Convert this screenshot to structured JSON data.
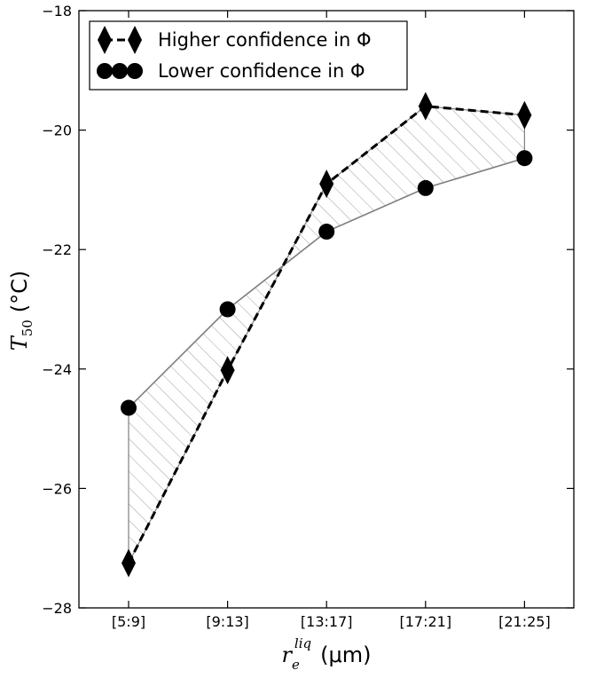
{
  "chart_data": {
    "type": "line",
    "categories": [
      "[5:9]",
      "[9:13]",
      "[13:17]",
      "[17:21]",
      "[21:25]"
    ],
    "series": [
      {
        "name": "Higher confidence in Φ",
        "marker": "diamond",
        "line": "dashed",
        "color": "#000000",
        "values": [
          -27.25,
          -24.02,
          -20.9,
          -19.6,
          -19.75
        ]
      },
      {
        "name": "Lower confidence in Φ",
        "marker": "circle",
        "line": "solid",
        "color": "#000000",
        "values": [
          -24.65,
          -23.0,
          -21.7,
          -20.97,
          -20.47
        ]
      }
    ],
    "shaded_between_series": true,
    "ylim": [
      -28,
      -18
    ],
    "yticks": [
      -28,
      -26,
      -24,
      -22,
      -20,
      -18
    ],
    "ytick_labels": [
      "−28",
      "−26",
      "−24",
      "−22",
      "−20",
      "−18"
    ],
    "xlabel": {
      "symbol": "r",
      "subscript": "e",
      "superscript": "liq",
      "unit": "(μm)"
    },
    "ylabel": {
      "symbol": "T",
      "subscript": "50",
      "unit": "(°C)"
    },
    "legend_position": "top-left",
    "grid": false,
    "fill_hatch_color": "#a0a0a0",
    "lower_line_color": "#808080"
  }
}
